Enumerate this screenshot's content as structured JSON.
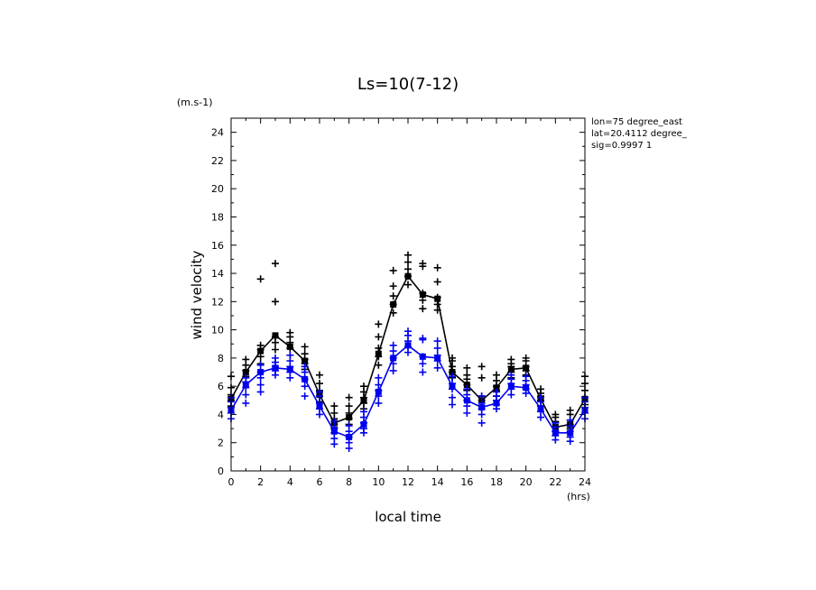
{
  "chart_data": {
    "type": "line",
    "title": "Ls=10(7-12)",
    "xlabel": "local time",
    "ylabel": "wind velocity",
    "x_unit": "(hrs)",
    "y_unit": "(m.s-1)",
    "info": [
      "lon=75 degree_east",
      "lat=20.4112 degree_",
      "sig=0.9997 1"
    ],
    "xlim": [
      0,
      24
    ],
    "ylim": [
      0,
      25
    ],
    "xticks": [
      0,
      2,
      4,
      6,
      8,
      10,
      12,
      14,
      16,
      18,
      20,
      22,
      24
    ],
    "yticks": [
      0,
      2,
      4,
      6,
      8,
      10,
      12,
      14,
      16,
      18,
      20,
      22,
      24
    ],
    "x": [
      0,
      1,
      2,
      3,
      4,
      5,
      6,
      7,
      8,
      9,
      10,
      11,
      12,
      13,
      14,
      15,
      16,
      17,
      18,
      19,
      20,
      21,
      22,
      23,
      24
    ],
    "series": [
      {
        "color": "#000000",
        "mean": [
          5.1,
          7.0,
          8.5,
          9.6,
          8.8,
          7.8,
          5.4,
          3.4,
          3.8,
          5.0,
          8.3,
          11.8,
          13.8,
          12.5,
          12.2,
          7.0,
          6.1,
          5.0,
          5.9,
          7.2,
          7.3,
          5.1,
          3.1,
          3.3,
          5.1
        ],
        "samples": [
          [
            4.6,
            5.0,
            5.4,
            5.9,
            6.7
          ],
          [
            6.3,
            6.7,
            7.1,
            7.5,
            7.9
          ],
          [
            7.6,
            8.1,
            8.6,
            8.9,
            13.6
          ],
          [
            8.6,
            9.1,
            9.5,
            12.0,
            14.7
          ],
          [
            8.2,
            8.7,
            9.1,
            9.5,
            9.8
          ],
          [
            7.2,
            7.6,
            7.9,
            8.3,
            8.8
          ],
          [
            4.9,
            5.3,
            5.7,
            6.2,
            6.8
          ],
          [
            3.0,
            3.3,
            3.7,
            4.1,
            4.6
          ],
          [
            3.3,
            3.7,
            4.1,
            4.6,
            5.2
          ],
          [
            4.4,
            4.8,
            5.2,
            5.6,
            6.0
          ],
          [
            7.5,
            8.1,
            8.7,
            9.5,
            10.4
          ],
          [
            11.2,
            11.8,
            12.4,
            13.1,
            14.2
          ],
          [
            13.2,
            13.8,
            14.3,
            14.8,
            15.3
          ],
          [
            11.5,
            12.1,
            12.6,
            14.5,
            14.7
          ],
          [
            11.4,
            11.8,
            12.3,
            13.4,
            14.4
          ],
          [
            6.6,
            7.0,
            7.4,
            7.8,
            8.0
          ],
          [
            5.7,
            6.1,
            6.5,
            6.8,
            7.3
          ],
          [
            4.6,
            5.0,
            5.3,
            6.6,
            7.4
          ],
          [
            5.3,
            5.7,
            6.0,
            6.4,
            6.8
          ],
          [
            6.6,
            7.0,
            7.4,
            7.6,
            7.9
          ],
          [
            6.8,
            7.1,
            7.4,
            7.8,
            8.0
          ],
          [
            4.6,
            5.0,
            5.3,
            5.5,
            5.8
          ],
          [
            2.8,
            3.1,
            3.5,
            3.8,
            4.0
          ],
          [
            3.0,
            3.3,
            3.6,
            4.0,
            4.3
          ],
          [
            4.7,
            5.2,
            5.7,
            6.2,
            6.7
          ]
        ]
      },
      {
        "color": "#0000ee",
        "mean": [
          4.3,
          6.1,
          7.0,
          7.3,
          7.2,
          6.5,
          4.6,
          2.8,
          2.4,
          3.3,
          5.6,
          8.0,
          8.9,
          8.1,
          8.0,
          6.0,
          5.0,
          4.5,
          4.8,
          6.0,
          5.9,
          4.4,
          2.7,
          2.7,
          4.3
        ],
        "samples": [
          [
            3.7,
            4.1,
            4.5,
            4.9,
            5.2
          ],
          [
            4.8,
            5.4,
            5.9,
            6.3,
            6.6
          ],
          [
            5.6,
            6.1,
            6.6,
            7.0,
            7.5
          ],
          [
            6.8,
            7.1,
            7.4,
            7.7,
            8.0
          ],
          [
            6.6,
            7.0,
            7.4,
            7.8,
            8.2
          ],
          [
            5.3,
            6.0,
            6.5,
            7.0,
            7.4
          ],
          [
            4.0,
            4.4,
            4.8,
            5.3,
            5.6
          ],
          [
            1.9,
            2.3,
            2.7,
            3.1,
            3.5
          ],
          [
            1.6,
            2.0,
            2.4,
            2.8,
            3.2
          ],
          [
            2.7,
            3.0,
            3.4,
            3.8,
            4.2
          ],
          [
            4.8,
            5.3,
            5.7,
            6.1,
            6.6
          ],
          [
            7.1,
            7.6,
            8.0,
            8.5,
            8.9
          ],
          [
            8.4,
            8.8,
            9.2,
            9.6,
            9.9
          ],
          [
            7.0,
            7.6,
            8.1,
            9.3,
            9.4
          ],
          [
            7.3,
            7.8,
            8.2,
            8.7,
            9.2
          ],
          [
            4.7,
            5.2,
            5.8,
            6.2,
            6.7
          ],
          [
            4.1,
            4.6,
            5.0,
            5.4,
            5.8
          ],
          [
            3.4,
            4.0,
            4.4,
            4.8,
            5.3
          ],
          [
            4.4,
            4.7,
            5.0,
            5.3,
            5.6
          ],
          [
            5.4,
            5.8,
            6.2,
            6.5,
            6.8
          ],
          [
            5.5,
            5.8,
            6.1,
            6.4,
            6.7
          ],
          [
            3.8,
            4.2,
            4.6,
            4.9,
            5.2
          ],
          [
            2.2,
            2.5,
            2.8,
            3.1,
            3.4
          ],
          [
            2.1,
            2.4,
            2.8,
            3.2,
            3.6
          ],
          [
            3.7,
            4.1,
            4.5,
            4.9,
            5.2
          ]
        ]
      }
    ]
  }
}
